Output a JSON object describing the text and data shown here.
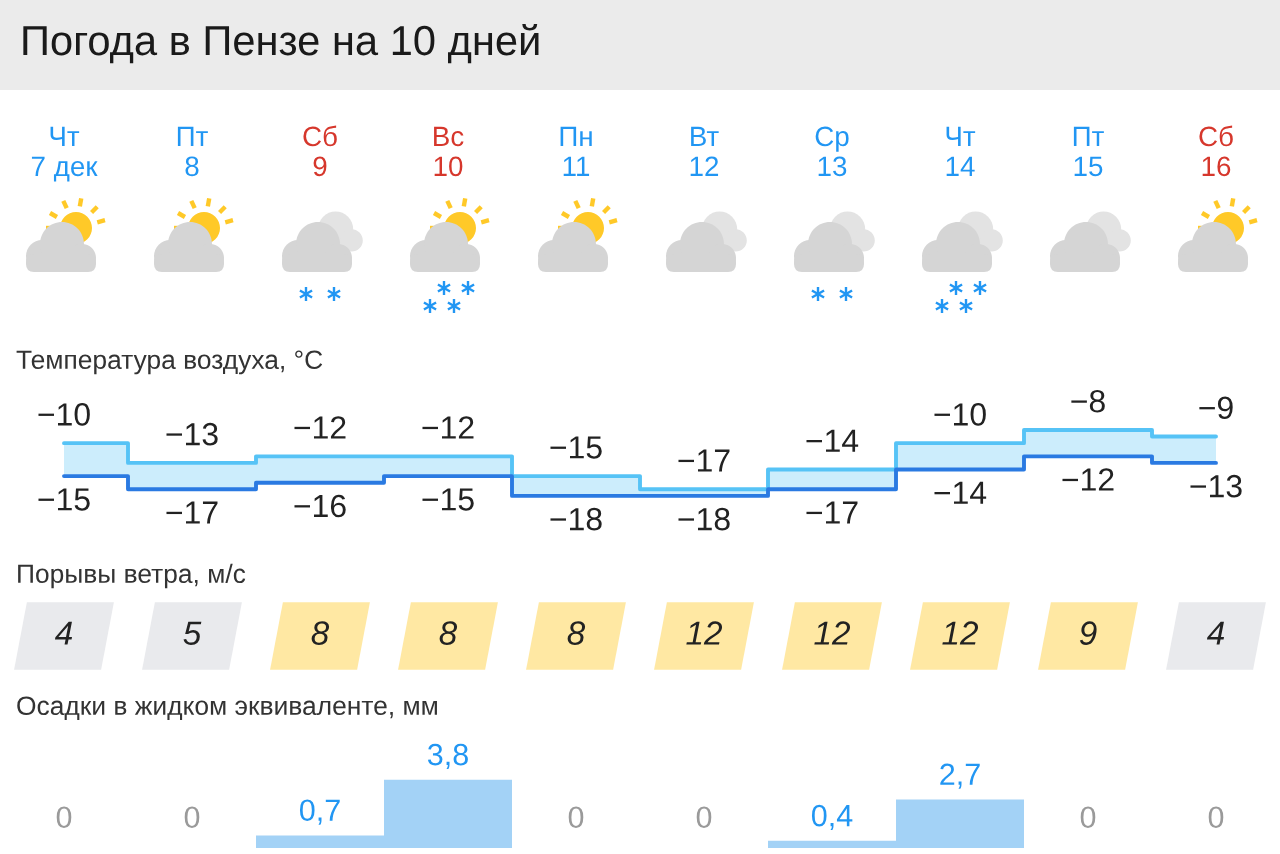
{
  "chart_data": [
    {
      "type": "step",
      "title": "Погода в Пензе на 10 дней",
      "subtitle": "Температура воздуха, °C",
      "categories": [
        "Чт\n7 дек",
        "Пт\n8",
        "Сб\n9",
        "Вс\n10",
        "Пн\n11",
        "Вт\n12",
        "Ср\n13",
        "Чт\n14",
        "Пт\n15",
        "Сб\n16"
      ],
      "tick_labels": "x",
      "series": [
        {
          "color": "#56c3f6",
          "values": [
            -10,
            -13,
            -12,
            -12,
            -15,
            -17,
            -14,
            -10,
            -8,
            -9
          ],
          "value_labels": [
            "−10",
            "−13",
            "−12",
            "−12",
            "−15",
            "−17",
            "−14",
            "−10",
            "−8",
            "−9"
          ],
          "lower": [
            -15,
            -17,
            -16,
            -15,
            -18,
            -18,
            -17,
            -14,
            -12,
            -13
          ],
          "upper": [
            -10,
            -13,
            -12,
            -12,
            -15,
            -17,
            -14,
            -10,
            -8,
            -9
          ]
        },
        {
          "color": "#2a7ae2",
          "values": [
            -15,
            -17,
            -16,
            -15,
            -18,
            -18,
            -17,
            -14,
            -12,
            -13
          ],
          "value_labels": [
            "−15",
            "−17",
            "−16",
            "−15",
            "−18",
            "−18",
            "−17",
            "−14",
            "−12",
            "−13"
          ]
        }
      ]
    },
    {
      "type": "heatmap",
      "title": "Порывы ветра, м/с",
      "categories": [
        null,
        null,
        null,
        null,
        null,
        null,
        null,
        null,
        null,
        null
      ],
      "y_categories": [
        null
      ],
      "tick_labels": false,
      "data_labels": true,
      "cells": [
        [
          4,
          5,
          8,
          8,
          8,
          12,
          12,
          12,
          9,
          4
        ]
      ],
      "colors": [
        "#e9eaed",
        "#e9eaed",
        "#ffe8a3",
        "#ffe8a3",
        "#ffe8a3",
        "#ffe8a3",
        "#ffe8a3",
        "#ffe8a3",
        "#ffe8a3",
        "#e9eaed"
      ]
    },
    {
      "type": "bar",
      "title": "Осадки в жидком эквиваленте, мм",
      "categories": [
        null,
        null,
        null,
        null,
        null,
        null,
        null,
        null,
        null,
        null
      ],
      "tick_labels": false,
      "color": "#a3d2f6",
      "values": [
        0,
        0,
        0.7,
        3.8,
        0,
        0,
        0.4,
        2.7,
        0,
        0
      ],
      "value_labels": [
        "0",
        "0",
        "0,7",
        "3,8",
        "0",
        "0",
        "0,4",
        "2,7",
        "0",
        "0"
      ]
    }
  ]
}
